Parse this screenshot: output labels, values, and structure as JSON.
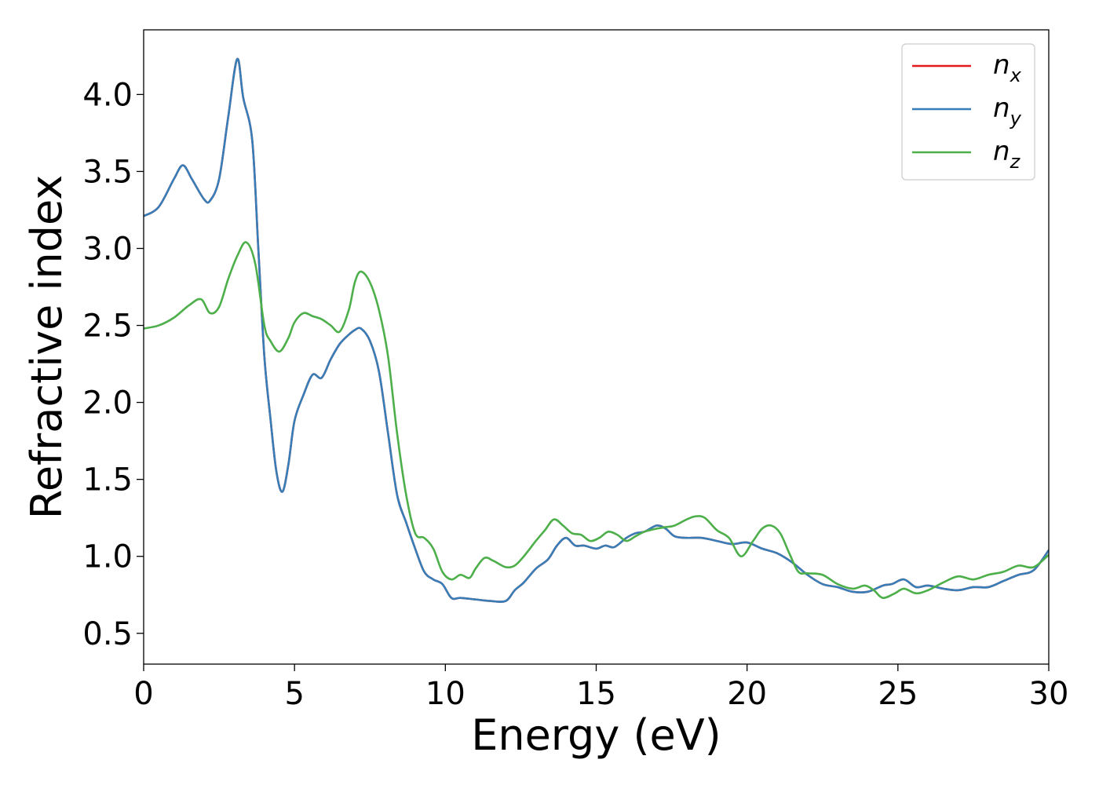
{
  "chart_data": {
    "type": "line",
    "title": "",
    "xlabel": "Energy (eV)",
    "ylabel": "Refractive index",
    "xlim": [
      0,
      30
    ],
    "ylim": [
      0.3,
      4.42
    ],
    "xticks": [
      0,
      5,
      10,
      15,
      20,
      25,
      30
    ],
    "xtick_labels": [
      "0",
      "5",
      "10",
      "15",
      "20",
      "25",
      "30"
    ],
    "yticks": [
      0.5,
      1.0,
      1.5,
      2.0,
      2.5,
      3.0,
      3.5,
      4.0
    ],
    "ytick_labels": [
      "0.5",
      "1.0",
      "1.5",
      "2.0",
      "2.5",
      "3.0",
      "3.5",
      "4.0"
    ],
    "grid": false,
    "legend_position": "top-right",
    "series": [
      {
        "name": "n",
        "subscript": "x",
        "color": "#e41a1c",
        "x": [
          0,
          0.5,
          1.0,
          1.3,
          1.6,
          2.0,
          2.2,
          2.5,
          2.8,
          3.1,
          3.3,
          3.6,
          3.8,
          4.0,
          4.2,
          4.4,
          4.6,
          4.8,
          5.0,
          5.3,
          5.6,
          5.9,
          6.2,
          6.5,
          6.8,
          7.0,
          7.2,
          7.5,
          7.8,
          8.1,
          8.4,
          8.7,
          9.0,
          9.3,
          9.6,
          9.9,
          10.2,
          10.5,
          11.0,
          11.5,
          12.0,
          12.3,
          12.6,
          13.0,
          13.4,
          13.7,
          14.0,
          14.3,
          14.6,
          15.0,
          15.3,
          15.6,
          16.0,
          16.3,
          16.6,
          17.0,
          17.3,
          17.6,
          18.0,
          18.5,
          19.0,
          19.5,
          20.0,
          20.5,
          21.0,
          21.5,
          22.0,
          22.5,
          23.0,
          23.5,
          24.0,
          24.5,
          24.8,
          25.2,
          25.6,
          26.0,
          26.5,
          27.0,
          27.5,
          28.0,
          28.5,
          29.0,
          29.5,
          30.0
        ],
        "y": [
          3.21,
          3.27,
          3.45,
          3.54,
          3.45,
          3.32,
          3.31,
          3.45,
          3.85,
          4.23,
          3.98,
          3.7,
          3.0,
          2.3,
          1.9,
          1.55,
          1.42,
          1.6,
          1.88,
          2.05,
          2.18,
          2.16,
          2.28,
          2.38,
          2.44,
          2.47,
          2.48,
          2.4,
          2.2,
          1.8,
          1.4,
          1.22,
          1.05,
          0.9,
          0.85,
          0.82,
          0.73,
          0.73,
          0.72,
          0.71,
          0.71,
          0.78,
          0.83,
          0.92,
          0.98,
          1.07,
          1.12,
          1.07,
          1.07,
          1.05,
          1.07,
          1.06,
          1.12,
          1.15,
          1.16,
          1.2,
          1.18,
          1.13,
          1.12,
          1.12,
          1.1,
          1.08,
          1.09,
          1.05,
          1.02,
          0.96,
          0.88,
          0.82,
          0.8,
          0.77,
          0.77,
          0.81,
          0.82,
          0.85,
          0.8,
          0.81,
          0.79,
          0.78,
          0.8,
          0.8,
          0.84,
          0.88,
          0.91,
          1.04
        ]
      },
      {
        "name": "n",
        "subscript": "y",
        "color": "#377eb8",
        "x": [
          0,
          0.5,
          1.0,
          1.3,
          1.6,
          2.0,
          2.2,
          2.5,
          2.8,
          3.1,
          3.3,
          3.6,
          3.8,
          4.0,
          4.2,
          4.4,
          4.6,
          4.8,
          5.0,
          5.3,
          5.6,
          5.9,
          6.2,
          6.5,
          6.8,
          7.0,
          7.2,
          7.5,
          7.8,
          8.1,
          8.4,
          8.7,
          9.0,
          9.3,
          9.6,
          9.9,
          10.2,
          10.5,
          11.0,
          11.5,
          12.0,
          12.3,
          12.6,
          13.0,
          13.4,
          13.7,
          14.0,
          14.3,
          14.6,
          15.0,
          15.3,
          15.6,
          16.0,
          16.3,
          16.6,
          17.0,
          17.3,
          17.6,
          18.0,
          18.5,
          19.0,
          19.5,
          20.0,
          20.5,
          21.0,
          21.5,
          22.0,
          22.5,
          23.0,
          23.5,
          24.0,
          24.5,
          24.8,
          25.2,
          25.6,
          26.0,
          26.5,
          27.0,
          27.5,
          28.0,
          28.5,
          29.0,
          29.5,
          30.0
        ],
        "y": [
          3.21,
          3.27,
          3.45,
          3.54,
          3.45,
          3.32,
          3.31,
          3.45,
          3.85,
          4.23,
          3.98,
          3.7,
          3.0,
          2.3,
          1.9,
          1.55,
          1.42,
          1.6,
          1.88,
          2.05,
          2.18,
          2.16,
          2.28,
          2.38,
          2.44,
          2.47,
          2.48,
          2.4,
          2.2,
          1.8,
          1.4,
          1.22,
          1.05,
          0.9,
          0.85,
          0.82,
          0.73,
          0.73,
          0.72,
          0.71,
          0.71,
          0.78,
          0.83,
          0.92,
          0.98,
          1.07,
          1.12,
          1.07,
          1.07,
          1.05,
          1.07,
          1.06,
          1.12,
          1.15,
          1.16,
          1.2,
          1.18,
          1.13,
          1.12,
          1.12,
          1.1,
          1.08,
          1.09,
          1.05,
          1.02,
          0.96,
          0.88,
          0.82,
          0.8,
          0.77,
          0.77,
          0.81,
          0.82,
          0.85,
          0.8,
          0.81,
          0.79,
          0.78,
          0.8,
          0.8,
          0.84,
          0.88,
          0.91,
          1.04
        ]
      },
      {
        "name": "n",
        "subscript": "z",
        "color": "#4daf4a",
        "x": [
          0,
          0.5,
          1.0,
          1.5,
          1.9,
          2.2,
          2.5,
          2.8,
          3.1,
          3.4,
          3.7,
          4.0,
          4.2,
          4.5,
          4.8,
          5.0,
          5.3,
          5.6,
          5.9,
          6.2,
          6.5,
          6.8,
          7.0,
          7.2,
          7.5,
          7.8,
          8.1,
          8.4,
          8.7,
          9.0,
          9.3,
          9.6,
          9.9,
          10.2,
          10.5,
          10.8,
          11.0,
          11.3,
          11.6,
          12.0,
          12.3,
          12.6,
          13.0,
          13.3,
          13.6,
          13.9,
          14.2,
          14.5,
          14.8,
          15.1,
          15.4,
          15.7,
          16.0,
          16.3,
          16.6,
          17.0,
          17.3,
          17.6,
          18.0,
          18.3,
          18.6,
          19.0,
          19.4,
          19.8,
          20.2,
          20.5,
          20.8,
          21.1,
          21.4,
          21.7,
          22.0,
          22.5,
          23.0,
          23.5,
          23.9,
          24.2,
          24.5,
          24.9,
          25.2,
          25.6,
          26.0,
          26.5,
          27.0,
          27.5,
          28.0,
          28.5,
          29.0,
          29.5,
          30.0
        ],
        "y": [
          2.48,
          2.5,
          2.55,
          2.63,
          2.67,
          2.58,
          2.62,
          2.8,
          2.95,
          3.04,
          2.9,
          2.5,
          2.4,
          2.33,
          2.42,
          2.52,
          2.58,
          2.56,
          2.54,
          2.5,
          2.46,
          2.6,
          2.78,
          2.85,
          2.78,
          2.6,
          2.3,
          1.8,
          1.4,
          1.15,
          1.12,
          1.05,
          0.9,
          0.85,
          0.88,
          0.86,
          0.92,
          0.99,
          0.97,
          0.93,
          0.94,
          1.0,
          1.1,
          1.17,
          1.24,
          1.2,
          1.15,
          1.14,
          1.1,
          1.12,
          1.16,
          1.14,
          1.1,
          1.13,
          1.16,
          1.18,
          1.19,
          1.2,
          1.24,
          1.26,
          1.25,
          1.17,
          1.12,
          1.0,
          1.1,
          1.18,
          1.2,
          1.15,
          1.02,
          0.9,
          0.89,
          0.88,
          0.82,
          0.79,
          0.81,
          0.78,
          0.73,
          0.76,
          0.79,
          0.76,
          0.78,
          0.83,
          0.87,
          0.85,
          0.88,
          0.9,
          0.94,
          0.93,
          1.01
        ]
      }
    ]
  }
}
